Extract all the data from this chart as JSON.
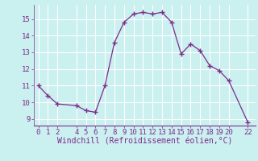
{
  "x": [
    0,
    1,
    2,
    4,
    5,
    6,
    7,
    8,
    9,
    10,
    11,
    12,
    13,
    14,
    15,
    16,
    17,
    18,
    19,
    20,
    22
  ],
  "y": [
    11.0,
    10.4,
    9.9,
    9.8,
    9.5,
    9.4,
    11.0,
    13.6,
    14.8,
    15.3,
    15.4,
    15.3,
    15.4,
    14.8,
    12.9,
    13.5,
    13.1,
    12.2,
    11.9,
    11.3,
    8.8
  ],
  "line_color": "#7B2D8B",
  "marker": "+",
  "bg_color": "#CBF0F0",
  "grid_color": "#ffffff",
  "xlabel": "Windchill (Refroidissement éolien,°C)",
  "xlabel_color": "#7B2D8B",
  "tick_color": "#7B2D8B",
  "xlim": [
    -0.5,
    22.8
  ],
  "ylim": [
    8.6,
    15.85
  ],
  "yticks": [
    9,
    10,
    11,
    12,
    13,
    14,
    15
  ],
  "xticks": [
    0,
    1,
    2,
    4,
    5,
    6,
    7,
    8,
    9,
    10,
    11,
    12,
    13,
    14,
    15,
    16,
    17,
    18,
    19,
    20,
    22
  ],
  "font_size": 6.5,
  "label_font_size": 7.0,
  "markersize": 4,
  "linewidth": 0.9
}
